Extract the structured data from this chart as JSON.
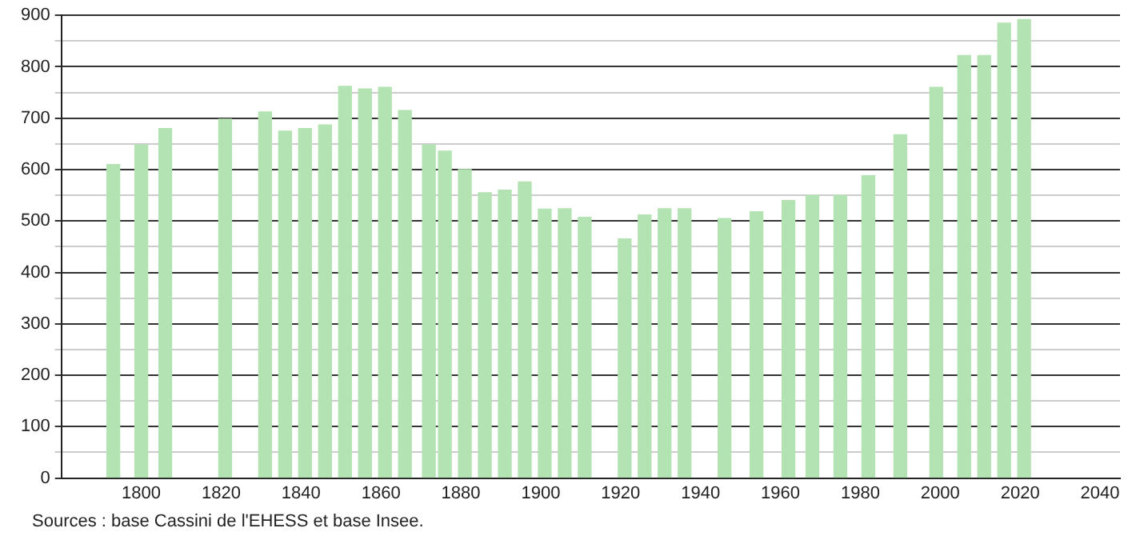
{
  "chart_data": {
    "type": "bar",
    "x": [
      1793,
      1800,
      1806,
      1821,
      1831,
      1836,
      1841,
      1846,
      1851,
      1856,
      1861,
      1866,
      1872,
      1876,
      1881,
      1886,
      1891,
      1896,
      1901,
      1906,
      1911,
      1921,
      1926,
      1931,
      1936,
      1946,
      1954,
      1962,
      1968,
      1975,
      1982,
      1990,
      1999,
      2006,
      2011,
      2016,
      2021
    ],
    "values": [
      610,
      648,
      680,
      698,
      712,
      675,
      680,
      687,
      762,
      757,
      760,
      715,
      648,
      636,
      600,
      555,
      560,
      576,
      523,
      524,
      507,
      465,
      512,
      524,
      524,
      505,
      518,
      540,
      550,
      550,
      588,
      668,
      760,
      822,
      822,
      885,
      892
    ],
    "color": "#b3e3b3",
    "xlim": [
      1780,
      2045
    ],
    "xticks": [
      1800,
      1820,
      1840,
      1860,
      1880,
      1900,
      1920,
      1940,
      1960,
      1980,
      2000,
      2020,
      2040
    ],
    "ylim": [
      0,
      900
    ],
    "yticks": [
      0,
      {
        "value": 50,
        "label": null
      },
      100,
      {
        "value": 150,
        "label": null
      },
      200,
      {
        "value": 250,
        "label": null
      },
      300,
      {
        "value": 350,
        "label": null
      },
      400,
      {
        "value": 450,
        "label": null
      },
      500,
      {
        "value": 550,
        "label": null
      },
      600,
      {
        "value": 650,
        "label": null
      },
      700,
      {
        "value": 750,
        "label": null
      },
      800,
      {
        "value": 850,
        "label": null
      },
      900
    ],
    "grid": "y",
    "annotations": [
      "Sources : base Cassini de l'EHESS et base Insee."
    ]
  }
}
